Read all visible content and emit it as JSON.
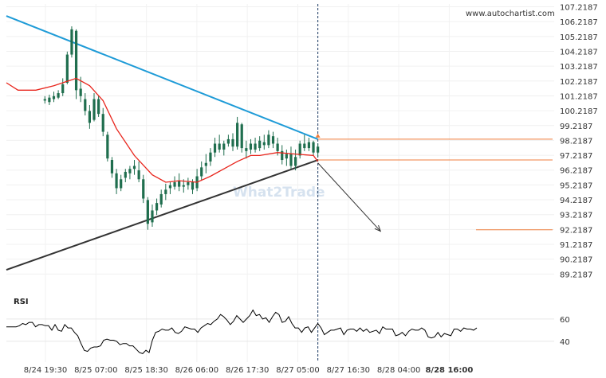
{
  "watermark_url": "www.autochartist.com",
  "watermark_brand": "What2Trade",
  "rsi_label": "RSI",
  "colors": {
    "resistance": "#1e9bd7",
    "support": "#333333",
    "moving_average": "#e8251c",
    "candles": "#1f6e4e",
    "target_lines": "#f07e3c",
    "projection_arrow": "#333333",
    "rsi_line": "#000000",
    "current_time_marker": "#1b3a63"
  },
  "chart_data": [
    {
      "type": "candlestick",
      "y_axis_ticks": [
        "107.2187",
        "106.2187",
        "105.2187",
        "104.2187",
        "103.2187",
        "102.2187",
        "101.2187",
        "100.2187",
        "99.2187",
        "98.2187",
        "97.2187",
        "96.2187",
        "95.2187",
        "94.2187",
        "93.2187",
        "92.2187",
        "91.2187",
        "90.2187",
        "89.2187"
      ],
      "ylim": [
        88.7,
        107.3
      ],
      "x_axis_ticks": [
        "8/24 19:30",
        "8/25 07:00",
        "8/25 18:30",
        "8/26 06:00",
        "8/26 17:30",
        "8/27 05:00",
        "8/27 16:30",
        "8/28 04:00",
        "8/28 16:00"
      ],
      "highlighted_tick": "8/28 16:00",
      "x_range": [
        -4.3,
        61.8
      ],
      "ohlc": [
        [
          0,
          100.9,
          101.2,
          100.7,
          101.0
        ],
        [
          0.5,
          100.8,
          101.3,
          100.6,
          101.1
        ],
        [
          1,
          101.0,
          101.5,
          100.8,
          101.2
        ],
        [
          1.5,
          101.1,
          101.6,
          101.0,
          101.4
        ],
        [
          2,
          101.4,
          102.4,
          101.2,
          102.0
        ],
        [
          2.5,
          102.1,
          104.2,
          102.0,
          104.0
        ],
        [
          3,
          104.0,
          105.9,
          103.8,
          105.7
        ],
        [
          3.5,
          105.6,
          105.7,
          101.0,
          101.6
        ],
        [
          4,
          101.7,
          102.5,
          100.8,
          101.2
        ],
        [
          4.5,
          101.0,
          101.4,
          99.9,
          100.2
        ],
        [
          5,
          100.2,
          100.6,
          99.0,
          99.4
        ],
        [
          5.5,
          99.6,
          101.4,
          99.5,
          101.0
        ],
        [
          6,
          101.0,
          101.2,
          99.8,
          100.0
        ],
        [
          6.5,
          100.0,
          100.4,
          98.5,
          98.8
        ],
        [
          7,
          98.6,
          98.8,
          96.8,
          97.0
        ],
        [
          7.5,
          96.9,
          97.1,
          95.7,
          96.0
        ],
        [
          8,
          96.0,
          96.3,
          94.6,
          95.0
        ],
        [
          8.5,
          95.0,
          95.9,
          94.8,
          95.6
        ],
        [
          9,
          95.7,
          96.3,
          95.4,
          96.1
        ],
        [
          9.5,
          96.0,
          96.5,
          95.6,
          96.3
        ],
        [
          10,
          96.3,
          96.9,
          95.9,
          96.5
        ],
        [
          10.5,
          96.2,
          96.8,
          95.4,
          95.6
        ],
        [
          11,
          95.6,
          95.9,
          94.0,
          94.3
        ],
        [
          11.5,
          94.2,
          94.4,
          92.2,
          92.6
        ],
        [
          12,
          92.7,
          93.9,
          92.4,
          93.5
        ],
        [
          12.5,
          93.5,
          94.3,
          93.2,
          94.0
        ],
        [
          13,
          93.9,
          94.9,
          93.7,
          94.6
        ],
        [
          13.5,
          94.6,
          95.3,
          94.2,
          94.9
        ],
        [
          14,
          95.0,
          95.4,
          94.6,
          95.2
        ],
        [
          14.5,
          95.1,
          95.8,
          94.9,
          95.4
        ],
        [
          15,
          95.5,
          96.0,
          94.8,
          95.1
        ],
        [
          15.5,
          95.1,
          95.6,
          94.7,
          95.2
        ],
        [
          16,
          95.2,
          95.7,
          94.9,
          95.4
        ],
        [
          16.5,
          95.4,
          95.6,
          94.6,
          94.9
        ],
        [
          17,
          95.0,
          96.3,
          94.8,
          95.8
        ],
        [
          17.5,
          95.8,
          96.8,
          95.5,
          96.4
        ],
        [
          18,
          96.5,
          97.3,
          96.0,
          96.7
        ],
        [
          18.5,
          96.8,
          97.7,
          96.5,
          97.4
        ],
        [
          19,
          97.4,
          98.4,
          97.1,
          98.0
        ],
        [
          19.5,
          98.0,
          98.6,
          97.4,
          97.6
        ],
        [
          20,
          97.6,
          98.2,
          97.2,
          98.0
        ],
        [
          20.5,
          98.0,
          98.6,
          97.8,
          98.3
        ],
        [
          21,
          98.3,
          98.7,
          97.5,
          97.8
        ],
        [
          21.5,
          97.8,
          99.8,
          97.6,
          99.4
        ],
        [
          22,
          99.3,
          99.4,
          97.4,
          97.7
        ],
        [
          22.5,
          97.7,
          98.2,
          97.0,
          97.5
        ],
        [
          23,
          97.6,
          98.3,
          97.3,
          98.0
        ],
        [
          23.5,
          98.0,
          98.4,
          97.4,
          97.6
        ],
        [
          24,
          97.7,
          98.5,
          97.5,
          98.2
        ],
        [
          24.5,
          98.1,
          98.6,
          97.6,
          97.9
        ],
        [
          25,
          97.9,
          98.9,
          97.7,
          98.6
        ],
        [
          25.5,
          98.5,
          98.8,
          97.7,
          98.0
        ],
        [
          26,
          98.0,
          98.4,
          97.2,
          97.5
        ],
        [
          26.5,
          97.5,
          97.9,
          96.6,
          96.9
        ],
        [
          27,
          97.0,
          97.6,
          96.5,
          97.3
        ],
        [
          27.5,
          97.3,
          97.8,
          96.3,
          96.5
        ],
        [
          28,
          96.5,
          97.6,
          96.2,
          97.1
        ],
        [
          28.5,
          97.2,
          98.2,
          97.0,
          98.0
        ],
        [
          29,
          98.0,
          98.6,
          97.5,
          97.7
        ],
        [
          29.5,
          97.7,
          98.4,
          97.5,
          98.1
        ],
        [
          30,
          98.1,
          98.2,
          97.2,
          97.4
        ],
        [
          30.5,
          97.4,
          98.0,
          97.1,
          97.8
        ]
      ],
      "moving_average": [
        [
          -4.3,
          102.1
        ],
        [
          -3.0,
          101.6
        ],
        [
          -1.0,
          101.6
        ],
        [
          1.0,
          101.9
        ],
        [
          2.5,
          102.2
        ],
        [
          3.5,
          102.4
        ],
        [
          5.0,
          101.9
        ],
        [
          6.5,
          100.9
        ],
        [
          8.0,
          99.0
        ],
        [
          10.0,
          97.2
        ],
        [
          12.0,
          95.9
        ],
        [
          13.5,
          95.4
        ],
        [
          15.0,
          95.5
        ],
        [
          17.0,
          95.4
        ],
        [
          18.5,
          95.8
        ],
        [
          20.0,
          96.3
        ],
        [
          21.5,
          96.8
        ],
        [
          23.0,
          97.2
        ],
        [
          24.0,
          97.2
        ],
        [
          26.0,
          97.4
        ],
        [
          28.0,
          97.3
        ],
        [
          30.0,
          97.2
        ],
        [
          30.5,
          96.8
        ]
      ],
      "support_line": [
        [
          -4.3,
          89.5
        ],
        [
          30.5,
          96.9
        ]
      ],
      "resistance_line": [
        [
          -4.3,
          106.6
        ],
        [
          30.5,
          98.3
        ]
      ],
      "projection_arrow": [
        [
          30.5,
          96.7
        ],
        [
          37.5,
          92.1
        ]
      ],
      "target_levels": [
        98.3,
        96.9,
        92.2
      ]
    },
    {
      "type": "line",
      "title": "RSI",
      "y_axis_ticks": [
        "60",
        "40"
      ],
      "ylim": [
        25,
        72
      ],
      "values": [
        53,
        53,
        53,
        53,
        54,
        56,
        55,
        57,
        57,
        53,
        55,
        55,
        54,
        54,
        50,
        55,
        50,
        49,
        55,
        52,
        52,
        48,
        45,
        38,
        32,
        31,
        34,
        35,
        35,
        36,
        41,
        42,
        41,
        41,
        40,
        37,
        38,
        38,
        36,
        36,
        33,
        30,
        29,
        32,
        30,
        41,
        48,
        49,
        51,
        50,
        50,
        52,
        48,
        47,
        49,
        53,
        52,
        51,
        51,
        48,
        52,
        54,
        56,
        55,
        58,
        60,
        64,
        62,
        59,
        55,
        58,
        63,
        60,
        57,
        60,
        63,
        68,
        63,
        64,
        60,
        61,
        57,
        62,
        66,
        64,
        57,
        58,
        62,
        56,
        52,
        52,
        48,
        52,
        53,
        48,
        52,
        56,
        52,
        46,
        48,
        50,
        50,
        51,
        52,
        46,
        50,
        51,
        51,
        49,
        52,
        49,
        51,
        48,
        49,
        50,
        47,
        53,
        51,
        51,
        51,
        45,
        46,
        48,
        45,
        49,
        51,
        50,
        50,
        52,
        50,
        44,
        43,
        44,
        48,
        44,
        47,
        46,
        45,
        51,
        51,
        49,
        52,
        51,
        51,
        50,
        52
      ]
    }
  ]
}
